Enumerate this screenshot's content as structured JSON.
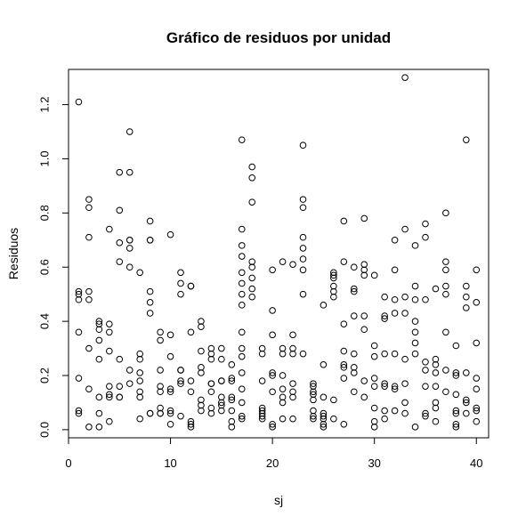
{
  "chart_data": {
    "type": "scatter",
    "title": "Gráfico de residuos por unidad",
    "xlabel": "sj",
    "ylabel": "Residuos",
    "xlim": [
      0,
      41.2
    ],
    "ylim": [
      -0.03,
      1.33
    ],
    "x_ticks": [
      0,
      10,
      20,
      30,
      40
    ],
    "x_tick_labels": [
      "0",
      "10",
      "20",
      "30",
      "40"
    ],
    "y_ticks": [
      0.0,
      0.2,
      0.4,
      0.6,
      0.8,
      1.0,
      1.2
    ],
    "y_tick_labels": [
      "0.0",
      "0.2",
      "0.4",
      "0.6",
      "0.8",
      "1.0",
      "1.2"
    ],
    "grid": false,
    "marker": "open-circle",
    "points": [
      [
        1,
        1.21
      ],
      [
        1,
        0.51
      ],
      [
        1,
        0.5
      ],
      [
        1,
        0.48
      ],
      [
        1,
        0.36
      ],
      [
        1,
        0.19
      ],
      [
        1,
        0.07
      ],
      [
        1,
        0.06
      ],
      [
        2,
        0.85
      ],
      [
        2,
        0.82
      ],
      [
        2,
        0.71
      ],
      [
        2,
        0.51
      ],
      [
        2,
        0.48
      ],
      [
        2,
        0.3
      ],
      [
        2,
        0.15
      ],
      [
        2,
        0.01
      ],
      [
        3,
        0.4
      ],
      [
        3,
        0.39
      ],
      [
        3,
        0.37
      ],
      [
        3,
        0.33
      ],
      [
        3,
        0.26
      ],
      [
        3,
        0.12
      ],
      [
        3,
        0.06
      ],
      [
        3,
        0.01
      ],
      [
        4,
        0.74
      ],
      [
        4,
        0.39
      ],
      [
        4,
        0.36
      ],
      [
        4,
        0.29
      ],
      [
        4,
        0.16
      ],
      [
        4,
        0.13
      ],
      [
        4,
        0.12
      ],
      [
        4,
        0.03
      ],
      [
        5,
        0.95
      ],
      [
        5,
        0.81
      ],
      [
        5,
        0.69
      ],
      [
        5,
        0.62
      ],
      [
        5,
        0.26
      ],
      [
        5,
        0.16
      ],
      [
        5,
        0.12
      ],
      [
        5,
        0.12
      ],
      [
        6,
        1.1
      ],
      [
        6,
        0.95
      ],
      [
        6,
        0.7
      ],
      [
        6,
        0.7
      ],
      [
        6,
        0.67
      ],
      [
        6,
        0.6
      ],
      [
        6,
        0.22
      ],
      [
        6,
        0.17
      ],
      [
        7,
        0.58
      ],
      [
        7,
        0.28
      ],
      [
        7,
        0.26
      ],
      [
        7,
        0.21
      ],
      [
        7,
        0.18
      ],
      [
        7,
        0.14
      ],
      [
        7,
        0.12
      ],
      [
        7,
        0.04
      ],
      [
        8,
        0.77
      ],
      [
        8,
        0.7
      ],
      [
        8,
        0.7
      ],
      [
        8,
        0.51
      ],
      [
        8,
        0.47
      ],
      [
        8,
        0.43
      ],
      [
        8,
        0.06
      ],
      [
        8,
        0.06
      ],
      [
        9,
        0.36
      ],
      [
        9,
        0.33
      ],
      [
        9,
        0.22
      ],
      [
        9,
        0.16
      ],
      [
        9,
        0.14
      ],
      [
        9,
        0.08
      ],
      [
        9,
        0.06
      ],
      [
        9,
        0.06
      ],
      [
        10,
        0.72
      ],
      [
        10,
        0.35
      ],
      [
        10,
        0.27
      ],
      [
        10,
        0.15
      ],
      [
        10,
        0.14
      ],
      [
        10,
        0.07
      ],
      [
        10,
        0.06
      ],
      [
        10,
        0.02
      ],
      [
        11,
        0.58
      ],
      [
        11,
        0.54
      ],
      [
        11,
        0.5
      ],
      [
        11,
        0.22
      ],
      [
        11,
        0.22
      ],
      [
        11,
        0.18
      ],
      [
        11,
        0.17
      ],
      [
        11,
        0.05
      ],
      [
        12,
        0.53
      ],
      [
        12,
        0.53
      ],
      [
        12,
        0.36
      ],
      [
        12,
        0.18
      ],
      [
        12,
        0.14
      ],
      [
        12,
        0.03
      ],
      [
        12,
        0.02
      ],
      [
        12,
        0.01
      ],
      [
        13,
        0.4
      ],
      [
        13,
        0.38
      ],
      [
        13,
        0.29
      ],
      [
        13,
        0.23
      ],
      [
        13,
        0.21
      ],
      [
        13,
        0.11
      ],
      [
        13,
        0.09
      ],
      [
        13,
        0.07
      ],
      [
        14,
        0.3
      ],
      [
        14,
        0.28
      ],
      [
        14,
        0.26
      ],
      [
        14,
        0.17
      ],
      [
        14,
        0.17
      ],
      [
        14,
        0.14
      ],
      [
        14,
        0.08
      ],
      [
        14,
        0.06
      ],
      [
        15,
        0.3
      ],
      [
        15,
        0.26
      ],
      [
        15,
        0.18
      ],
      [
        15,
        0.18
      ],
      [
        15,
        0.12
      ],
      [
        15,
        0.1
      ],
      [
        15,
        0.09
      ],
      [
        15,
        0.07
      ],
      [
        16,
        0.24
      ],
      [
        16,
        0.19
      ],
      [
        16,
        0.18
      ],
      [
        16,
        0.12
      ],
      [
        16,
        0.11
      ],
      [
        16,
        0.07
      ],
      [
        16,
        0.03
      ],
      [
        16,
        0.01
      ],
      [
        17,
        0.68
      ],
      [
        17,
        0.64
      ],
      [
        17,
        0.58
      ],
      [
        17,
        0.5
      ],
      [
        17,
        0.46
      ],
      [
        17,
        0.36
      ],
      [
        17,
        0.27
      ],
      [
        17,
        0.21
      ],
      [
        17,
        1.07
      ],
      [
        17,
        0.74
      ],
      [
        17,
        0.54
      ],
      [
        17,
        0.3
      ],
      [
        17,
        0.15
      ],
      [
        17,
        0.1
      ],
      [
        17,
        0.05
      ],
      [
        17,
        0.04
      ],
      [
        18,
        0.97
      ],
      [
        18,
        0.93
      ],
      [
        18,
        0.84
      ],
      [
        18,
        0.62
      ],
      [
        18,
        0.6
      ],
      [
        18,
        0.56
      ],
      [
        18,
        0.52
      ],
      [
        18,
        0.49
      ],
      [
        19,
        0.3
      ],
      [
        19,
        0.28
      ],
      [
        19,
        0.18
      ],
      [
        19,
        0.08
      ],
      [
        19,
        0.07
      ],
      [
        19,
        0.06
      ],
      [
        19,
        0.05
      ],
      [
        19,
        0.04
      ],
      [
        20,
        0.59
      ],
      [
        20,
        0.44
      ],
      [
        20,
        0.35
      ],
      [
        20,
        0.21
      ],
      [
        20,
        0.2
      ],
      [
        20,
        0.14
      ],
      [
        20,
        0.02
      ],
      [
        20,
        0.01
      ],
      [
        21,
        0.62
      ],
      [
        21,
        0.3
      ],
      [
        21,
        0.28
      ],
      [
        21,
        0.2
      ],
      [
        21,
        0.15
      ],
      [
        21,
        0.12
      ],
      [
        21,
        0.1
      ],
      [
        21,
        0.04
      ],
      [
        22,
        0.61
      ],
      [
        22,
        0.35
      ],
      [
        22,
        0.3
      ],
      [
        22,
        0.28
      ],
      [
        22,
        0.17
      ],
      [
        22,
        0.14
      ],
      [
        22,
        0.12
      ],
      [
        22,
        0.04
      ],
      [
        23,
        1.05
      ],
      [
        23,
        0.85
      ],
      [
        23,
        0.82
      ],
      [
        23,
        0.71
      ],
      [
        23,
        0.67
      ],
      [
        23,
        0.63
      ],
      [
        23,
        0.59
      ],
      [
        23,
        0.5
      ],
      [
        23,
        0.28
      ],
      [
        24,
        0.17
      ],
      [
        24,
        0.16
      ],
      [
        24,
        0.14
      ],
      [
        24,
        0.13
      ],
      [
        24,
        0.11
      ],
      [
        24,
        0.07
      ],
      [
        24,
        0.05
      ],
      [
        24,
        0.04
      ],
      [
        25,
        0.46
      ],
      [
        25,
        0.24
      ],
      [
        25,
        0.12
      ],
      [
        25,
        0.06
      ],
      [
        25,
        0.05
      ],
      [
        25,
        0.04
      ],
      [
        25,
        0.02
      ],
      [
        25,
        0.01
      ],
      [
        26,
        0.58
      ],
      [
        26,
        0.57
      ],
      [
        26,
        0.56
      ],
      [
        26,
        0.53
      ],
      [
        26,
        0.51
      ],
      [
        26,
        0.49
      ],
      [
        26,
        0.11
      ],
      [
        26,
        0.04
      ],
      [
        27,
        0.77
      ],
      [
        27,
        0.62
      ],
      [
        27,
        0.39
      ],
      [
        27,
        0.29
      ],
      [
        27,
        0.24
      ],
      [
        27,
        0.23
      ],
      [
        27,
        0.19
      ],
      [
        27,
        0.02
      ],
      [
        28,
        0.6
      ],
      [
        28,
        0.52
      ],
      [
        28,
        0.51
      ],
      [
        28,
        0.42
      ],
      [
        28,
        0.28
      ],
      [
        28,
        0.23
      ],
      [
        28,
        0.21
      ],
      [
        28,
        0.14
      ],
      [
        29,
        0.78
      ],
      [
        29,
        0.61
      ],
      [
        29,
        0.59
      ],
      [
        29,
        0.57
      ],
      [
        29,
        0.42
      ],
      [
        29,
        0.37
      ],
      [
        29,
        0.18
      ],
      [
        29,
        0.12
      ],
      [
        30,
        0.57
      ],
      [
        30,
        0.31
      ],
      [
        30,
        0.27
      ],
      [
        30,
        0.19
      ],
      [
        30,
        0.16
      ],
      [
        30,
        0.08
      ],
      [
        30,
        0.03
      ],
      [
        30,
        0.01
      ],
      [
        31,
        0.49
      ],
      [
        31,
        0.42
      ],
      [
        31,
        0.41
      ],
      [
        31,
        0.28
      ],
      [
        31,
        0.17
      ],
      [
        31,
        0.16
      ],
      [
        31,
        0.07
      ],
      [
        31,
        0.04
      ],
      [
        32,
        0.7
      ],
      [
        32,
        0.59
      ],
      [
        32,
        0.48
      ],
      [
        32,
        0.43
      ],
      [
        32,
        0.28
      ],
      [
        32,
        0.16
      ],
      [
        32,
        0.15
      ],
      [
        32,
        0.07
      ],
      [
        33,
        1.3
      ],
      [
        33,
        0.74
      ],
      [
        33,
        0.49
      ],
      [
        33,
        0.43
      ],
      [
        33,
        0.26
      ],
      [
        33,
        0.17
      ],
      [
        33,
        0.1
      ],
      [
        33,
        0.06
      ],
      [
        34,
        0.68
      ],
      [
        34,
        0.53
      ],
      [
        34,
        0.48
      ],
      [
        34,
        0.4
      ],
      [
        34,
        0.36
      ],
      [
        34,
        0.32
      ],
      [
        34,
        0.28
      ],
      [
        34,
        0.01
      ],
      [
        35,
        0.76
      ],
      [
        35,
        0.71
      ],
      [
        35,
        0.48
      ],
      [
        35,
        0.25
      ],
      [
        35,
        0.22
      ],
      [
        35,
        0.16
      ],
      [
        35,
        0.06
      ],
      [
        35,
        0.05
      ],
      [
        36,
        0.52
      ],
      [
        36,
        0.26
      ],
      [
        36,
        0.24
      ],
      [
        36,
        0.21
      ],
      [
        36,
        0.16
      ],
      [
        36,
        0.1
      ],
      [
        36,
        0.08
      ],
      [
        36,
        0.03
      ],
      [
        37,
        0.8
      ],
      [
        37,
        0.62
      ],
      [
        37,
        0.59
      ],
      [
        37,
        0.53
      ],
      [
        37,
        0.5
      ],
      [
        37,
        0.36
      ],
      [
        37,
        0.22
      ],
      [
        37,
        0.14
      ],
      [
        38,
        0.31
      ],
      [
        38,
        0.21
      ],
      [
        38,
        0.2
      ],
      [
        38,
        0.13
      ],
      [
        38,
        0.07
      ],
      [
        38,
        0.06
      ],
      [
        38,
        0.02
      ],
      [
        38,
        0.01
      ],
      [
        39,
        1.07
      ],
      [
        39,
        0.53
      ],
      [
        39,
        0.49
      ],
      [
        39,
        0.45
      ],
      [
        39,
        0.21
      ],
      [
        39,
        0.11
      ],
      [
        39,
        0.1
      ],
      [
        39,
        0.06
      ],
      [
        40,
        0.59
      ],
      [
        40,
        0.47
      ],
      [
        40,
        0.32
      ],
      [
        40,
        0.19
      ],
      [
        40,
        0.15
      ],
      [
        40,
        0.08
      ],
      [
        40,
        0.07
      ],
      [
        40,
        0.03
      ]
    ]
  }
}
